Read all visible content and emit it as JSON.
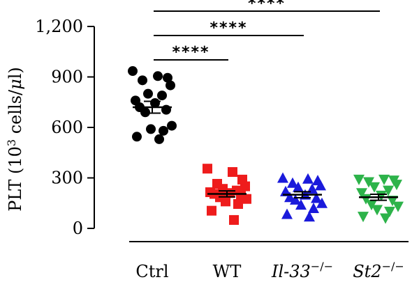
{
  "chart_data": {
    "type": "scatter",
    "ylabel_prefix": "PLT (10",
    "ylabel_exp": "3",
    "ylabel_suffix": " cells/",
    "ylabel_mu": "μ",
    "ylabel_end": "l)",
    "ylim": [
      0,
      1200
    ],
    "yticks": [
      0,
      300,
      600,
      900,
      1200
    ],
    "ytick_labels": [
      "0",
      "300",
      "600",
      "900",
      "1,200"
    ],
    "categories": [
      {
        "base": "Ctrl",
        "sup": "",
        "italic": false
      },
      {
        "base": "WT",
        "sup": "",
        "italic": false
      },
      {
        "base": "Il-33",
        "sup": "−/−",
        "italic": true
      },
      {
        "base": "St2",
        "sup": "−/−",
        "italic": true
      }
    ],
    "series": [
      {
        "color": "#000000",
        "marker": "circle",
        "mean": 720,
        "sem": 35,
        "values": [
          935,
          905,
          895,
          880,
          850,
          800,
          790,
          760,
          745,
          720,
          705,
          690,
          610,
          590,
          580,
          545,
          530
        ]
      },
      {
        "color": "#ee1c1c",
        "marker": "square",
        "mean": 205,
        "sem": 18,
        "values": [
          355,
          335,
          290,
          265,
          250,
          235,
          225,
          215,
          210,
          205,
          195,
          185,
          175,
          160,
          145,
          105,
          50
        ]
      },
      {
        "color": "#1a1adb",
        "marker": "triangle-up",
        "mean": 200,
        "sem": 18,
        "values": [
          300,
          295,
          285,
          270,
          255,
          245,
          235,
          220,
          200,
          185,
          180,
          170,
          150,
          140,
          120,
          85,
          70
        ]
      },
      {
        "color": "#2db34a",
        "marker": "triangle-down",
        "mean": 185,
        "sem": 18,
        "values": [
          290,
          290,
          285,
          275,
          260,
          245,
          225,
          210,
          195,
          175,
          165,
          140,
          130,
          110,
          100,
          70,
          60
        ]
      }
    ],
    "significance": [
      {
        "from": 0,
        "to": 1,
        "label": "****"
      },
      {
        "from": 0,
        "to": 2,
        "label": "****"
      },
      {
        "from": 0,
        "to": 3,
        "label": "****"
      }
    ]
  }
}
